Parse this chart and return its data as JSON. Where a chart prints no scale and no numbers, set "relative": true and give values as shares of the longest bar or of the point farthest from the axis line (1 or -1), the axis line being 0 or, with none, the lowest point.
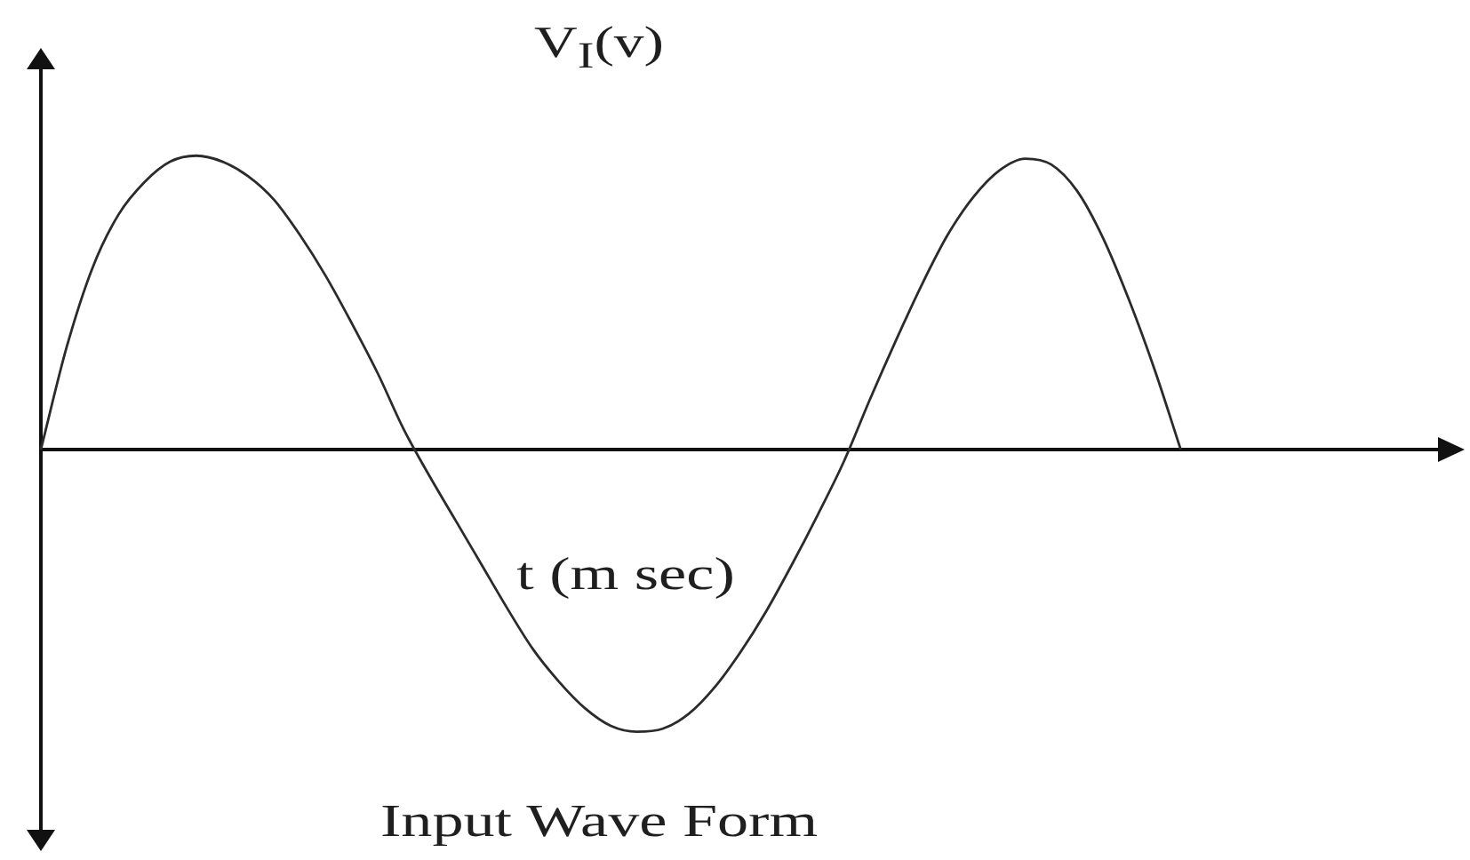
{
  "chart_data": {
    "type": "line",
    "ylabel": "V$_{I}$(v)",
    "xlabel": "t (m sec)",
    "annotations": [
      "Input Wave Form"
    ],
    "relative": true,
    "color": "#2b2b2b",
    "categories": [
      null,
      null,
      null,
      null,
      null,
      null,
      null,
      null,
      null,
      null,
      null,
      null,
      null,
      null,
      null,
      null,
      null,
      null,
      null,
      null,
      null,
      null,
      null,
      null,
      null,
      null,
      null,
      null,
      null,
      null,
      null,
      null,
      null,
      null,
      null,
      null,
      null,
      null,
      null,
      null,
      null,
      null,
      null,
      null,
      null,
      null,
      null,
      null,
      null,
      null,
      null,
      null,
      null,
      null,
      null
    ],
    "values": [
      0,
      0.35,
      0.62,
      0.8,
      0.91,
      0.98,
      1,
      0.98,
      0.93,
      0.85,
      0.73,
      0.59,
      0.43,
      0.26,
      0.07,
      -0.09,
      -0.24,
      -0.39,
      -0.54,
      -0.68,
      -0.79,
      -0.88,
      -0.94,
      -0.96,
      -0.95,
      -0.9,
      -0.81,
      -0.69,
      -0.55,
      -0.39,
      -0.22,
      -0.04,
      0.17,
      0.37,
      0.56,
      0.73,
      0.86,
      0.95,
      0.99,
      0.97,
      0.88,
      0.72,
      0.51,
      0.27,
      0,
      null,
      null,
      null,
      null,
      null,
      null,
      null,
      null,
      null,
      null
    ]
  }
}
